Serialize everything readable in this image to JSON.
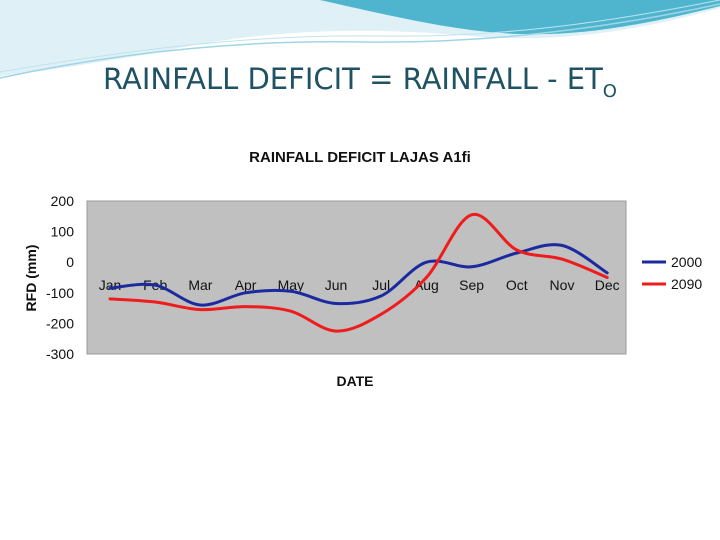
{
  "slide": {
    "title_main": "RAINFALL DEFICIT = RAINFALL - ET",
    "title_sub": "O"
  },
  "colors": {
    "title": "#1f5263",
    "plot_bg": "#c0c0c0",
    "series_2000": "#1c2aa0",
    "series_2090": "#ee1c1c",
    "deco_teal": "#4fb5cf"
  },
  "chart_data": {
    "type": "line",
    "title": "RAINFALL DEFICIT LAJAS A1fi",
    "xlabel": "DATE",
    "ylabel": "RFD (mm)",
    "ylim": [
      -300,
      200
    ],
    "yticks": [
      200,
      100,
      0,
      -100,
      -200,
      -300
    ],
    "grid": false,
    "legend_position": "right",
    "categories": [
      "Jan",
      "Feb",
      "Mar",
      "Apr",
      "May",
      "Jun",
      "Jul",
      "Aug",
      "Sep",
      "Oct",
      "Nov",
      "Dec"
    ],
    "series": [
      {
        "name": "2000",
        "color": "#1c2aa0",
        "values": [
          -85,
          -75,
          -140,
          -100,
          -95,
          -135,
          -110,
          0,
          -15,
          30,
          55,
          -35
        ]
      },
      {
        "name": "2090",
        "color": "#ee1c1c",
        "values": [
          -120,
          -130,
          -155,
          -145,
          -160,
          -225,
          -170,
          -50,
          155,
          40,
          10,
          -50
        ]
      }
    ]
  }
}
